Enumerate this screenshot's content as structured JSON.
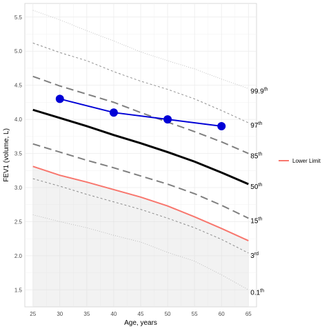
{
  "chart_data": {
    "type": "line",
    "xlabel": "Age, years",
    "ylabel": "FEV1 (volume, L)",
    "xlim": [
      23.5,
      66.5
    ],
    "ylim": [
      1.25,
      5.7
    ],
    "x_ticks": [
      25,
      30,
      35,
      40,
      45,
      50,
      55,
      60,
      65
    ],
    "x_tick_labels": [
      "25",
      "30",
      "35",
      "40",
      "45",
      "50",
      "55",
      "60",
      "65"
    ],
    "y_ticks": [
      1.5,
      2.0,
      2.5,
      3.0,
      3.5,
      4.0,
      4.5,
      5.0,
      5.5
    ],
    "y_tick_labels": [
      "1.5",
      "2.0",
      "2.5",
      "3.0",
      "3.5",
      "4.0",
      "4.5",
      "5.0",
      "5.5"
    ],
    "grid": true,
    "legend_position": "right",
    "x": [
      25,
      30,
      35,
      40,
      45,
      50,
      55,
      60,
      65
    ],
    "percentile_curves": [
      {
        "label": "99.9",
        "suffix": "th",
        "style": "dotted",
        "color": "#b3b3b3",
        "values": [
          5.6,
          5.46,
          5.3,
          5.15,
          4.99,
          4.86,
          4.74,
          4.59,
          4.45
        ]
      },
      {
        "label": "97",
        "suffix": "th",
        "style": "short-dash",
        "color": "#8c8c8c",
        "values": [
          5.12,
          4.98,
          4.86,
          4.7,
          4.56,
          4.44,
          4.3,
          4.13,
          3.95
        ]
      },
      {
        "label": "85",
        "suffix": "th",
        "style": "long-dash",
        "color": "#808080",
        "values": [
          4.63,
          4.49,
          4.37,
          4.25,
          4.1,
          3.96,
          3.82,
          3.67,
          3.5
        ]
      },
      {
        "label": "50",
        "suffix": "th",
        "style": "solid-thick",
        "color": "#000000",
        "values": [
          4.14,
          4.02,
          3.9,
          3.77,
          3.65,
          3.52,
          3.38,
          3.22,
          3.05
        ]
      },
      {
        "label": "15",
        "suffix": "th",
        "style": "long-dash",
        "color": "#808080",
        "values": [
          3.64,
          3.52,
          3.4,
          3.29,
          3.17,
          3.05,
          2.91,
          2.74,
          2.55
        ]
      },
      {
        "label": "3",
        "suffix": "rd",
        "style": "short-dash",
        "color": "#8c8c8c",
        "values": [
          3.13,
          3.02,
          2.9,
          2.79,
          2.68,
          2.55,
          2.41,
          2.24,
          2.04
        ]
      },
      {
        "label": "0.1",
        "suffix": "th",
        "style": "dotted",
        "color": "#b3b3b3",
        "values": [
          2.6,
          2.5,
          2.41,
          2.3,
          2.2,
          2.05,
          1.92,
          1.72,
          1.5
        ]
      }
    ],
    "series": [
      {
        "name": "Lower Limit",
        "color": "#f8766d",
        "values": [
          3.31,
          3.18,
          3.08,
          2.97,
          2.86,
          2.73,
          2.57,
          2.4,
          2.22
        ]
      }
    ],
    "shaded_region": {
      "below_series": "Lower Limit",
      "fill": "#d9d9d9",
      "opacity": 0.35
    },
    "measurements": {
      "color": "#0000d6",
      "x": [
        30,
        40,
        50,
        60
      ],
      "y": [
        4.3,
        4.1,
        4.0,
        3.9
      ]
    }
  }
}
